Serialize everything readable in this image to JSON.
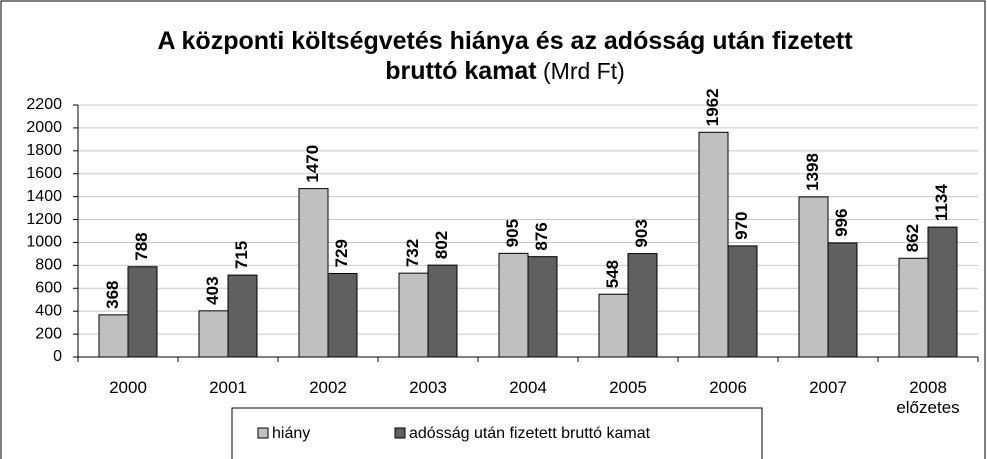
{
  "chart_data": {
    "type": "bar",
    "title": "A központi költségvetés hiánya és az adósság után fizetett bruttó kamat",
    "title_unit": "(Mrd Ft)",
    "categories": [
      "2000",
      "2001",
      "2002",
      "2003",
      "2004",
      "2005",
      "2006",
      "2007",
      "2008 előzetes"
    ],
    "series": [
      {
        "name": "hiány",
        "color": "#c0c0c0",
        "values": [
          368,
          403,
          1470,
          732,
          905,
          548,
          1962,
          1398,
          862
        ]
      },
      {
        "name": "adósság után fizetett bruttó kamat",
        "color": "#606060",
        "values": [
          788,
          715,
          729,
          802,
          876,
          903,
          970,
          996,
          1134
        ]
      }
    ],
    "ylim": [
      0,
      2200
    ],
    "yticks": [
      0,
      200,
      400,
      600,
      800,
      1000,
      1200,
      1400,
      1600,
      1800,
      2000,
      2200
    ],
    "grid": true,
    "legend": "bottom"
  }
}
